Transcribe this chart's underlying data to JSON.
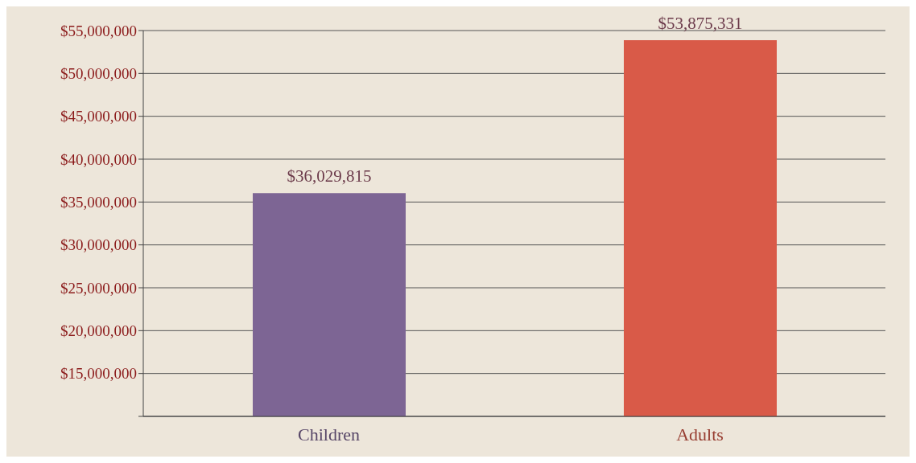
{
  "chart_data": {
    "type": "bar",
    "categories": [
      "Children",
      "Adults"
    ],
    "values": [
      36029815,
      53875331
    ],
    "colors": [
      "#7d6594",
      "#d95a48"
    ],
    "value_labels": [
      "$36,029,815",
      "$53,875,331"
    ],
    "ylim": [
      10000000,
      55000000
    ],
    "yticks": [
      {
        "value": 10000000,
        "label": null
      },
      {
        "value": 15000000,
        "label": "$15,000,000"
      },
      {
        "value": 20000000,
        "label": "$20,000,000"
      },
      {
        "value": 25000000,
        "label": "$25,000,000"
      },
      {
        "value": 30000000,
        "label": "$30,000,000"
      },
      {
        "value": 35000000,
        "label": "$35,000,000"
      },
      {
        "value": 40000000,
        "label": "$40,000,000"
      },
      {
        "value": 45000000,
        "label": "$45,000,000"
      },
      {
        "value": 50000000,
        "label": "$50,000,000"
      },
      {
        "value": 55000000,
        "label": "$55,000,000"
      }
    ],
    "grid": "y"
  }
}
